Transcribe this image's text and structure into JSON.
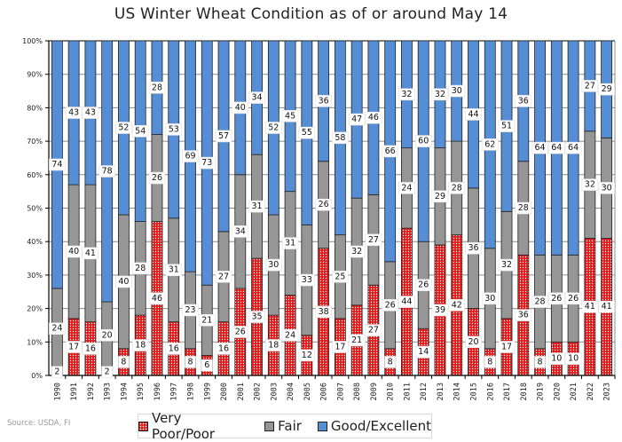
{
  "chart_data": {
    "type": "bar",
    "stacked": true,
    "percent_stacked": true,
    "title": "US Winter Wheat Condition as of or around May 14",
    "xlabel": "",
    "ylabel": "",
    "ylim": [
      0,
      100
    ],
    "yticks": [
      "0%",
      "10%",
      "20%",
      "30%",
      "40%",
      "50%",
      "60%",
      "70%",
      "80%",
      "90%",
      "100%"
    ],
    "grid": true,
    "legend_position": "bottom",
    "categories": [
      "1990",
      "1991",
      "1992",
      "1993",
      "1994",
      "1995",
      "1996",
      "1997",
      "1998",
      "1999",
      "2000",
      "2001",
      "2002",
      "2003",
      "2004",
      "2005",
      "2006",
      "2007",
      "2008",
      "2009",
      "2010",
      "2011",
      "2012",
      "2013",
      "2014",
      "2015",
      "2016",
      "2017",
      "2018",
      "2019",
      "2020",
      "2021",
      "2022",
      "2023"
    ],
    "series": [
      {
        "name": "Very Poor/Poor",
        "color": "#e01818",
        "values": [
          2,
          17,
          16,
          2,
          8,
          18,
          46,
          16,
          8,
          6,
          16,
          26,
          35,
          18,
          24,
          12,
          38,
          17,
          21,
          27,
          8,
          44,
          14,
          39,
          42,
          20,
          8,
          17,
          36,
          8,
          10,
          10,
          41,
          41
        ]
      },
      {
        "name": "Fair",
        "color": "#969696",
        "values": [
          24,
          40,
          41,
          20,
          40,
          28,
          26,
          31,
          23,
          21,
          27,
          34,
          31,
          30,
          31,
          33,
          26,
          25,
          32,
          27,
          26,
          24,
          26,
          29,
          28,
          36,
          30,
          32,
          28,
          28,
          26,
          26,
          32,
          30
        ]
      },
      {
        "name": "Good/Excellent",
        "color": "#558ed5",
        "values": [
          74,
          43,
          43,
          78,
          52,
          54,
          28,
          53,
          69,
          73,
          57,
          40,
          34,
          52,
          45,
          55,
          36,
          58,
          47,
          46,
          66,
          32,
          60,
          32,
          30,
          44,
          62,
          51,
          36,
          64,
          64,
          64,
          27,
          29
        ]
      }
    ]
  },
  "source": "Source: USDA, FI",
  "legend": {
    "items": [
      {
        "label": "Very Poor/Poor",
        "icon": "red-dotted-square"
      },
      {
        "label": "Fair",
        "icon": "gray-square"
      },
      {
        "label": "Good/Excellent",
        "icon": "blue-square"
      }
    ]
  }
}
